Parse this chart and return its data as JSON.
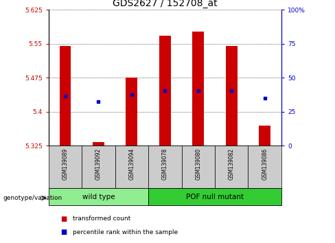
{
  "title": "GDS2627 / 152708_at",
  "samples": [
    "GSM139089",
    "GSM139092",
    "GSM139094",
    "GSM139078",
    "GSM139080",
    "GSM139082",
    "GSM139086"
  ],
  "bar_tops": [
    5.545,
    5.333,
    5.475,
    5.567,
    5.577,
    5.545,
    5.37
  ],
  "bar_base": 5.325,
  "blue_markers_left": [
    5.435,
    5.423,
    5.437,
    5.447,
    5.447,
    5.447,
    5.43
  ],
  "ylim_left": [
    5.325,
    5.625
  ],
  "yticks_left": [
    5.325,
    5.4,
    5.475,
    5.55,
    5.625
  ],
  "ylim_right": [
    0,
    100
  ],
  "yticks_right": [
    0,
    25,
    50,
    75,
    100
  ],
  "bar_color": "#cc0000",
  "marker_color": "#0000cc",
  "groups": [
    {
      "label": "wild type",
      "indices": [
        0,
        1,
        2
      ],
      "color": "#90ee90"
    },
    {
      "label": "POF null mutant",
      "indices": [
        3,
        4,
        5,
        6
      ],
      "color": "#33cc33"
    }
  ],
  "group_label": "genotype/variation",
  "legend_items": [
    {
      "label": "transformed count",
      "color": "#cc0000"
    },
    {
      "label": "percentile rank within the sample",
      "color": "#0000cc"
    }
  ],
  "title_fontsize": 10,
  "tick_label_fontsize": 6.5,
  "bar_width": 0.35,
  "background_color": "#ffffff",
  "left_tick_color": "#cc0000",
  "right_tick_color": "#0000cc"
}
